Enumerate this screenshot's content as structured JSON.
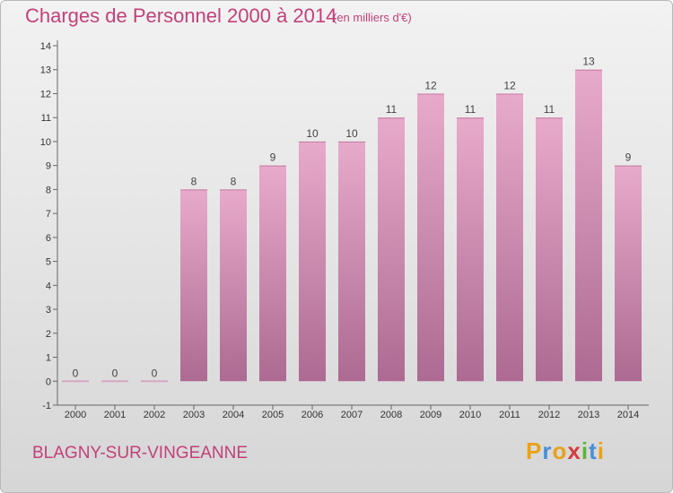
{
  "header": {
    "title": "Charges de Personnel 2000 à 2014",
    "unit": "(en milliers d'€)"
  },
  "footer": {
    "commune": "BLAGNY-SUR-VINGEANNE",
    "brand": "Proxiti",
    "brand_colors": [
      "#e8a21a",
      "#4a8fd4",
      "#e8a21a",
      "#d63b3b",
      "#5bb33c",
      "#4a8fd4",
      "#e8a21a"
    ]
  },
  "colors": {
    "text_accent": "#c2417a",
    "bar_top": "#e8aacb",
    "bar_bottom": "#ad6a92",
    "background_top": "#f2f2f2",
    "background_bottom": "#d6d6d6"
  },
  "chart_data": {
    "type": "bar",
    "title": "Charges de Personnel 2000 à 2014",
    "subtitle": "(en milliers d'€)",
    "xlabel": "",
    "ylabel": "",
    "categories": [
      "2000",
      "2001",
      "2002",
      "2003",
      "2004",
      "2005",
      "2006",
      "2007",
      "2008",
      "2009",
      "2010",
      "2011",
      "2012",
      "2013",
      "2014"
    ],
    "values": [
      0,
      0,
      0,
      8,
      8,
      9,
      10,
      10,
      11,
      12,
      11,
      12,
      11,
      13,
      9
    ],
    "ylim": [
      -1,
      14
    ],
    "yticks": [
      -1,
      0,
      1,
      2,
      3,
      4,
      5,
      6,
      7,
      8,
      9,
      10,
      11,
      12,
      13,
      14
    ],
    "grid": false,
    "legend": "none"
  }
}
